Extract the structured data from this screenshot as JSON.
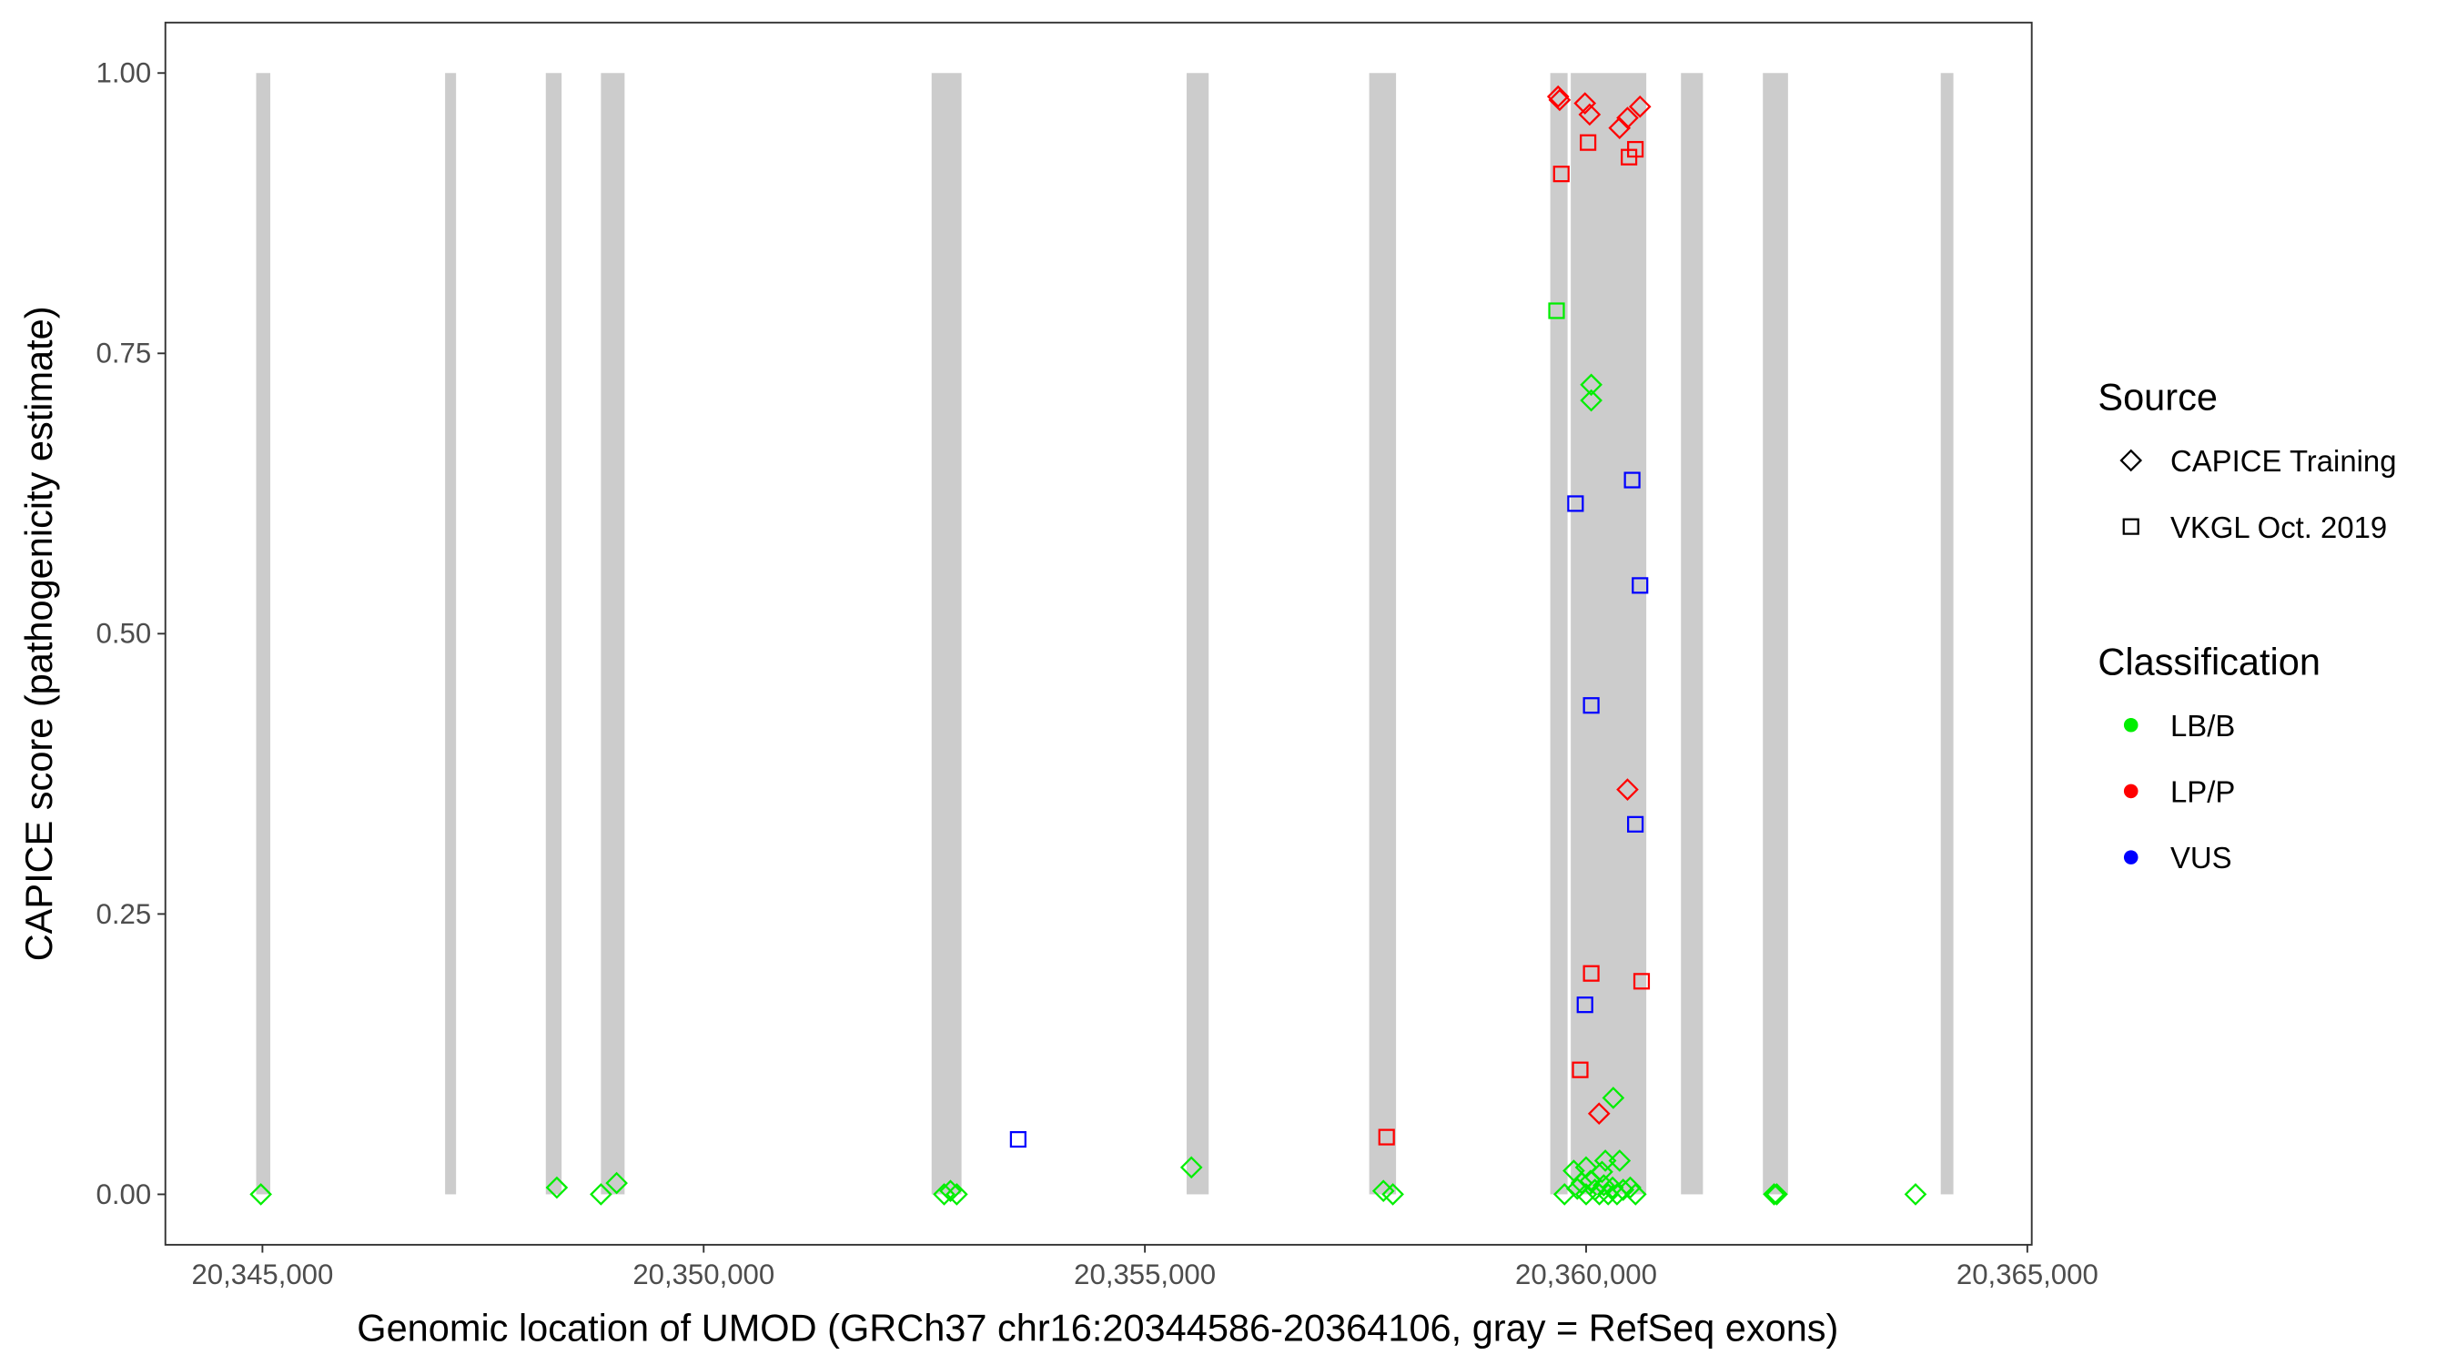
{
  "chart_data": {
    "type": "scatter",
    "xlabel": "Genomic location of UMOD (GRCh37 chr16:20344586-20364106, gray = RefSeq exons)",
    "ylabel": "CAPICE score (pathogenicity estimate)",
    "xlim": [
      20343900,
      20365050
    ],
    "ylim": [
      -0.045,
      1.045
    ],
    "x_ticks": [
      20345000,
      20350000,
      20355000,
      20360000,
      20365000
    ],
    "x_tick_labels": [
      "20,345,000",
      "20,350,000",
      "20,355,000",
      "20,360,000",
      "20,365,000"
    ],
    "y_ticks": [
      0,
      0.25,
      0.5,
      0.75,
      1.0
    ],
    "y_tick_labels": [
      "0.00",
      "0.25",
      "0.50",
      "0.75",
      "1.00"
    ],
    "grid": false,
    "exons": [
      [
        20344929,
        20345089
      ],
      [
        20347070,
        20347194
      ],
      [
        20348211,
        20348390
      ],
      [
        20348836,
        20349104
      ],
      [
        20352583,
        20352922
      ],
      [
        20355473,
        20355723
      ],
      [
        20357542,
        20357846
      ],
      [
        20359594,
        20359790
      ],
      [
        20359826,
        20360682
      ],
      [
        20361075,
        20361324
      ],
      [
        20362003,
        20362288
      ],
      [
        20364019,
        20364162
      ]
    ],
    "legend": {
      "placement": "right",
      "source_title": "Source",
      "source_items": [
        {
          "label": "CAPICE Training",
          "shape": "diamond"
        },
        {
          "label": "VKGL Oct. 2019",
          "shape": "square"
        }
      ],
      "class_title": "Classification",
      "class_items": [
        {
          "label": "LB/B",
          "color": "#00ee00"
        },
        {
          "label": "LP/P",
          "color": "#ff0000"
        },
        {
          "label": "VUS",
          "color": "#0000ff"
        }
      ]
    },
    "points": [
      {
        "x": 20344982,
        "y": 0,
        "s": "diamond",
        "c": "LB/B"
      },
      {
        "x": 20348336,
        "y": 0.006,
        "s": "diamond",
        "c": "LB/B"
      },
      {
        "x": 20348836,
        "y": 0,
        "s": "diamond",
        "c": "LB/B"
      },
      {
        "x": 20349014,
        "y": 0.01,
        "s": "diamond",
        "c": "LB/B"
      },
      {
        "x": 20352725,
        "y": 0,
        "s": "diamond",
        "c": "LB/B"
      },
      {
        "x": 20352797,
        "y": 0.003,
        "s": "diamond",
        "c": "LB/B"
      },
      {
        "x": 20352868,
        "y": 0,
        "s": "diamond",
        "c": "LB/B"
      },
      {
        "x": 20355527,
        "y": 0.024,
        "s": "diamond",
        "c": "LB/B"
      },
      {
        "x": 20357703,
        "y": 0.003,
        "s": "diamond",
        "c": "LB/B"
      },
      {
        "x": 20357810,
        "y": 0,
        "s": "diamond",
        "c": "LB/B"
      },
      {
        "x": 20362130,
        "y": 0,
        "s": "diamond",
        "c": "LB/B"
      },
      {
        "x": 20362160,
        "y": 0,
        "s": "diamond",
        "c": "LB/B"
      },
      {
        "x": 20363733,
        "y": 0,
        "s": "diamond",
        "c": "LB/B"
      },
      {
        "x": 20360058,
        "y": 0.722,
        "s": "diamond",
        "c": "LB/B"
      },
      {
        "x": 20360058,
        "y": 0.708,
        "s": "diamond",
        "c": "LB/B"
      },
      {
        "x": 20360308,
        "y": 0.086,
        "s": "diamond",
        "c": "LB/B"
      },
      {
        "x": 20360218,
        "y": 0.03,
        "s": "diamond",
        "c": "LB/B"
      },
      {
        "x": 20360380,
        "y": 0.03,
        "s": "diamond",
        "c": "LB/B"
      },
      {
        "x": 20359860,
        "y": 0.021,
        "s": "diamond",
        "c": "LB/B"
      },
      {
        "x": 20360000,
        "y": 0.024,
        "s": "diamond",
        "c": "LB/B"
      },
      {
        "x": 20360180,
        "y": 0.02,
        "s": "diamond",
        "c": "LB/B"
      },
      {
        "x": 20359755,
        "y": 0,
        "s": "diamond",
        "c": "LB/B"
      },
      {
        "x": 20359900,
        "y": 0.005,
        "s": "diamond",
        "c": "LB/B"
      },
      {
        "x": 20359950,
        "y": 0.01,
        "s": "diamond",
        "c": "LB/B"
      },
      {
        "x": 20360000,
        "y": 0,
        "s": "diamond",
        "c": "LB/B"
      },
      {
        "x": 20360050,
        "y": 0.012,
        "s": "diamond",
        "c": "LB/B"
      },
      {
        "x": 20360100,
        "y": 0.004,
        "s": "diamond",
        "c": "LB/B"
      },
      {
        "x": 20360150,
        "y": 0,
        "s": "diamond",
        "c": "LB/B"
      },
      {
        "x": 20360200,
        "y": 0.008,
        "s": "diamond",
        "c": "LB/B"
      },
      {
        "x": 20360250,
        "y": 0,
        "s": "diamond",
        "c": "LB/B"
      },
      {
        "x": 20360300,
        "y": 0.006,
        "s": "diamond",
        "c": "LB/B"
      },
      {
        "x": 20360350,
        "y": 0,
        "s": "diamond",
        "c": "LB/B"
      },
      {
        "x": 20360420,
        "y": 0.004,
        "s": "diamond",
        "c": "LB/B"
      },
      {
        "x": 20360500,
        "y": 0.006,
        "s": "diamond",
        "c": "LB/B"
      },
      {
        "x": 20360560,
        "y": 0,
        "s": "diamond",
        "c": "LB/B"
      },
      {
        "x": 20359665,
        "y": 0.788,
        "s": "square",
        "c": "LB/B"
      },
      {
        "x": 20359683,
        "y": 0.979,
        "s": "diamond",
        "c": "LP/P"
      },
      {
        "x": 20359700,
        "y": 0.976,
        "s": "diamond",
        "c": "LP/P"
      },
      {
        "x": 20359987,
        "y": 0.973,
        "s": "diamond",
        "c": "LP/P"
      },
      {
        "x": 20360040,
        "y": 0.963,
        "s": "diamond",
        "c": "LP/P"
      },
      {
        "x": 20360379,
        "y": 0.951,
        "s": "diamond",
        "c": "LP/P"
      },
      {
        "x": 20360469,
        "y": 0.96,
        "s": "diamond",
        "c": "LP/P"
      },
      {
        "x": 20360611,
        "y": 0.97,
        "s": "diamond",
        "c": "LP/P"
      },
      {
        "x": 20360469,
        "y": 0.361,
        "s": "diamond",
        "c": "LP/P"
      },
      {
        "x": 20360147,
        "y": 0.072,
        "s": "diamond",
        "c": "LP/P"
      },
      {
        "x": 20359719,
        "y": 0.91,
        "s": "square",
        "c": "LP/P"
      },
      {
        "x": 20360022,
        "y": 0.938,
        "s": "square",
        "c": "LP/P"
      },
      {
        "x": 20360558,
        "y": 0.932,
        "s": "square",
        "c": "LP/P"
      },
      {
        "x": 20360486,
        "y": 0.925,
        "s": "square",
        "c": "LP/P"
      },
      {
        "x": 20360058,
        "y": 0.197,
        "s": "square",
        "c": "LP/P"
      },
      {
        "x": 20360629,
        "y": 0.19,
        "s": "square",
        "c": "LP/P"
      },
      {
        "x": 20359933,
        "y": 0.111,
        "s": "square",
        "c": "LP/P"
      },
      {
        "x": 20357739,
        "y": 0.051,
        "s": "square",
        "c": "LP/P"
      },
      {
        "x": 20353564,
        "y": 0.049,
        "s": "square",
        "c": "VUS"
      },
      {
        "x": 20359880,
        "y": 0.616,
        "s": "square",
        "c": "VUS"
      },
      {
        "x": 20360522,
        "y": 0.637,
        "s": "square",
        "c": "VUS"
      },
      {
        "x": 20360611,
        "y": 0.543,
        "s": "square",
        "c": "VUS"
      },
      {
        "x": 20360058,
        "y": 0.436,
        "s": "square",
        "c": "VUS"
      },
      {
        "x": 20360558,
        "y": 0.33,
        "s": "square",
        "c": "VUS"
      },
      {
        "x": 20359987,
        "y": 0.169,
        "s": "square",
        "c": "VUS"
      }
    ]
  }
}
